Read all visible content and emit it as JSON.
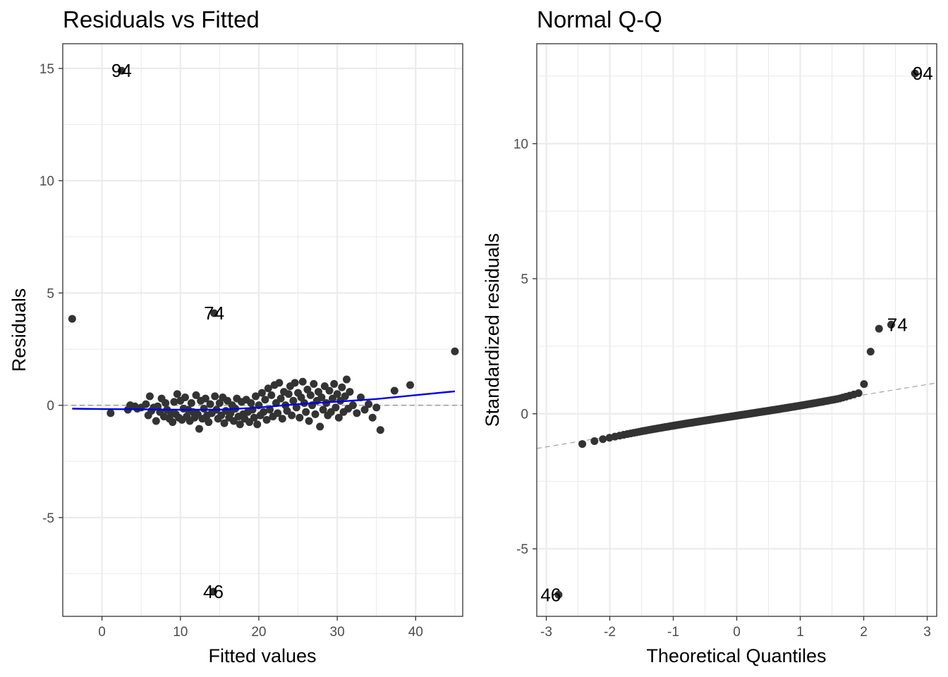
{
  "chart_data": [
    {
      "type": "scatter",
      "title": "Residuals vs Fitted",
      "xlabel": "Fitted values",
      "ylabel": "Residuals",
      "xlim": [
        -5,
        46
      ],
      "ylim": [
        -9.4,
        16.1
      ],
      "xticks": [
        0,
        10,
        20,
        30,
        40
      ],
      "yticks": [
        -5,
        0,
        5,
        10,
        15
      ],
      "xtick_labels": [
        "0",
        "10",
        "20",
        "30",
        "40"
      ],
      "ytick_labels": [
        "-5",
        "0",
        "5",
        "10",
        "15"
      ],
      "grid": true,
      "reference_line": {
        "y": 0,
        "style": "dashed",
        "color": "#999999"
      },
      "smooth_line": {
        "color": "#0000ee",
        "x": [
          -3.8,
          0,
          5,
          10,
          15,
          20,
          25,
          30,
          35,
          40,
          45
        ],
        "y": [
          -0.15,
          -0.17,
          -0.18,
          -0.2,
          -0.2,
          -0.1,
          0.05,
          0.16,
          0.28,
          0.45,
          0.62
        ]
      },
      "points_color": "#333333",
      "points": [
        [
          -3.8,
          3.85
        ],
        [
          1.1,
          -0.35
        ],
        [
          2.5,
          14.9
        ],
        [
          3.3,
          -0.2
        ],
        [
          3.6,
          0.0
        ],
        [
          4.2,
          -0.05
        ],
        [
          4.5,
          -0.15
        ],
        [
          5.0,
          -0.1
        ],
        [
          5.6,
          0.05
        ],
        [
          5.9,
          -0.45
        ],
        [
          6.1,
          0.4
        ],
        [
          6.3,
          -0.25
        ],
        [
          6.6,
          -0.1
        ],
        [
          6.9,
          -0.7
        ],
        [
          7.1,
          -0.05
        ],
        [
          7.4,
          -0.3
        ],
        [
          7.6,
          0.3
        ],
        [
          7.9,
          -0.5
        ],
        [
          8.1,
          0.1
        ],
        [
          8.3,
          -0.2
        ],
        [
          8.6,
          -0.6
        ],
        [
          8.8,
          -0.35
        ],
        [
          9.0,
          -0.75
        ],
        [
          9.2,
          0.15
        ],
        [
          9.4,
          -0.4
        ],
        [
          9.6,
          0.5
        ],
        [
          9.8,
          -0.55
        ],
        [
          10.0,
          0.2
        ],
        [
          10.2,
          -0.65
        ],
        [
          10.4,
          -0.15
        ],
        [
          10.6,
          0.35
        ],
        [
          10.8,
          -0.5
        ],
        [
          11.0,
          -0.2
        ],
        [
          11.2,
          -0.7
        ],
        [
          11.4,
          0.1
        ],
        [
          11.6,
          -0.3
        ],
        [
          11.8,
          -0.55
        ],
        [
          12.0,
          0.45
        ],
        [
          12.2,
          -0.4
        ],
        [
          12.4,
          -1.05
        ],
        [
          12.6,
          0.2
        ],
        [
          12.8,
          -0.6
        ],
        [
          13.0,
          -0.15
        ],
        [
          13.2,
          0.3
        ],
        [
          13.4,
          -0.45
        ],
        [
          13.6,
          -0.75
        ],
        [
          13.8,
          0.05
        ],
        [
          14.0,
          -0.35
        ],
        [
          14.3,
          4.1
        ],
        [
          14.2,
          -8.3
        ],
        [
          14.4,
          0.4
        ],
        [
          14.6,
          -0.2
        ],
        [
          14.8,
          -0.6
        ],
        [
          15.0,
          0.1
        ],
        [
          15.2,
          -0.45
        ],
        [
          15.4,
          0.35
        ],
        [
          15.6,
          -0.8
        ],
        [
          15.8,
          -0.25
        ],
        [
          16.0,
          0.2
        ],
        [
          16.2,
          -0.55
        ],
        [
          16.4,
          -0.35
        ],
        [
          16.6,
          0.0
        ],
        [
          16.8,
          -0.7
        ],
        [
          17.0,
          -0.15
        ],
        [
          17.2,
          0.3
        ],
        [
          17.4,
          -0.5
        ],
        [
          17.6,
          -0.85
        ],
        [
          17.8,
          0.15
        ],
        [
          18.0,
          -0.4
        ],
        [
          18.2,
          -0.6
        ],
        [
          18.4,
          0.25
        ],
        [
          18.6,
          -0.3
        ],
        [
          18.8,
          -0.75
        ],
        [
          19.0,
          0.1
        ],
        [
          19.2,
          -0.2
        ],
        [
          19.4,
          -0.55
        ],
        [
          19.6,
          0.4
        ],
        [
          19.8,
          -0.85
        ],
        [
          20.0,
          0.0
        ],
        [
          20.2,
          -0.45
        ],
        [
          20.4,
          0.55
        ],
        [
          20.6,
          -0.3
        ],
        [
          20.8,
          0.25
        ],
        [
          21.0,
          -0.65
        ],
        [
          21.2,
          0.75
        ],
        [
          21.4,
          -0.2
        ],
        [
          21.6,
          0.45
        ],
        [
          21.8,
          -0.5
        ],
        [
          22.0,
          0.9
        ],
        [
          22.2,
          0.1
        ],
        [
          22.4,
          -0.35
        ],
        [
          22.6,
          1.0
        ],
        [
          22.8,
          0.3
        ],
        [
          23.0,
          -0.6
        ],
        [
          23.2,
          0.6
        ],
        [
          23.4,
          0.0
        ],
        [
          23.6,
          -0.25
        ],
        [
          23.8,
          0.5
        ],
        [
          24.0,
          0.85
        ],
        [
          24.2,
          -0.45
        ],
        [
          24.4,
          0.2
        ],
        [
          24.6,
          1.0
        ],
        [
          24.8,
          -0.1
        ],
        [
          25.0,
          0.55
        ],
        [
          25.2,
          -0.55
        ],
        [
          25.4,
          0.35
        ],
        [
          25.6,
          1.05
        ],
        [
          25.8,
          0.1
        ],
        [
          26.0,
          -0.3
        ],
        [
          26.2,
          0.7
        ],
        [
          26.4,
          -0.7
        ],
        [
          26.6,
          0.45
        ],
        [
          26.8,
          0.0
        ],
        [
          27.0,
          0.95
        ],
        [
          27.2,
          -0.4
        ],
        [
          27.4,
          0.2
        ],
        [
          27.6,
          0.6
        ],
        [
          27.8,
          -0.95
        ],
        [
          28.0,
          0.35
        ],
        [
          28.2,
          -0.2
        ],
        [
          28.4,
          0.85
        ],
        [
          28.6,
          0.1
        ],
        [
          28.8,
          -0.45
        ],
        [
          29.0,
          0.65
        ],
        [
          29.2,
          -0.3
        ],
        [
          29.4,
          0.3
        ],
        [
          29.6,
          0.95
        ],
        [
          29.8,
          -0.1
        ],
        [
          30.0,
          0.5
        ],
        [
          30.2,
          -0.55
        ],
        [
          30.4,
          0.2
        ],
        [
          30.6,
          0.8
        ],
        [
          30.8,
          -0.3
        ],
        [
          31.0,
          0.4
        ],
        [
          31.2,
          1.15
        ],
        [
          31.4,
          -0.15
        ],
        [
          31.6,
          0.6
        ],
        [
          32.0,
          0.0
        ],
        [
          32.5,
          -0.35
        ],
        [
          33.0,
          0.35
        ],
        [
          33.5,
          -0.2
        ],
        [
          34.0,
          0.05
        ],
        [
          34.5,
          -0.55
        ],
        [
          35.0,
          -0.1
        ],
        [
          35.5,
          -1.1
        ],
        [
          37.3,
          0.65
        ],
        [
          39.3,
          0.9
        ],
        [
          45.0,
          2.4
        ]
      ],
      "labels": [
        {
          "text": "94",
          "x": 2.5,
          "y": 14.9
        },
        {
          "text": "74",
          "x": 14.3,
          "y": 4.1
        },
        {
          "text": "46",
          "x": 14.2,
          "y": -8.3
        }
      ]
    },
    {
      "type": "scatter",
      "title": "Normal Q-Q",
      "xlabel": "Theoretical Quantiles",
      "ylabel": "Standardized residuals",
      "xlim": [
        -3.15,
        3.15
      ],
      "ylim": [
        -7.5,
        13.7
      ],
      "xticks": [
        -3,
        -2,
        -1,
        0,
        1,
        2,
        3
      ],
      "yticks": [
        -5,
        0,
        5,
        10
      ],
      "xtick_labels": [
        "-3",
        "-2",
        "-1",
        "0",
        "1",
        "2",
        "3"
      ],
      "ytick_labels": [
        "-5",
        "0",
        "5",
        "10"
      ],
      "grid": true,
      "reference_line": {
        "slope": 0.385,
        "intercept": -0.07,
        "style": "dashed",
        "color": "#999999"
      },
      "points_color": "#333333",
      "n_points": 200,
      "labels": [
        {
          "text": "94",
          "x": 2.93,
          "y": 12.6
        },
        {
          "text": "74",
          "x": 2.53,
          "y": 3.3
        },
        {
          "text": "46",
          "x": -2.93,
          "y": -6.7
        }
      ]
    }
  ]
}
